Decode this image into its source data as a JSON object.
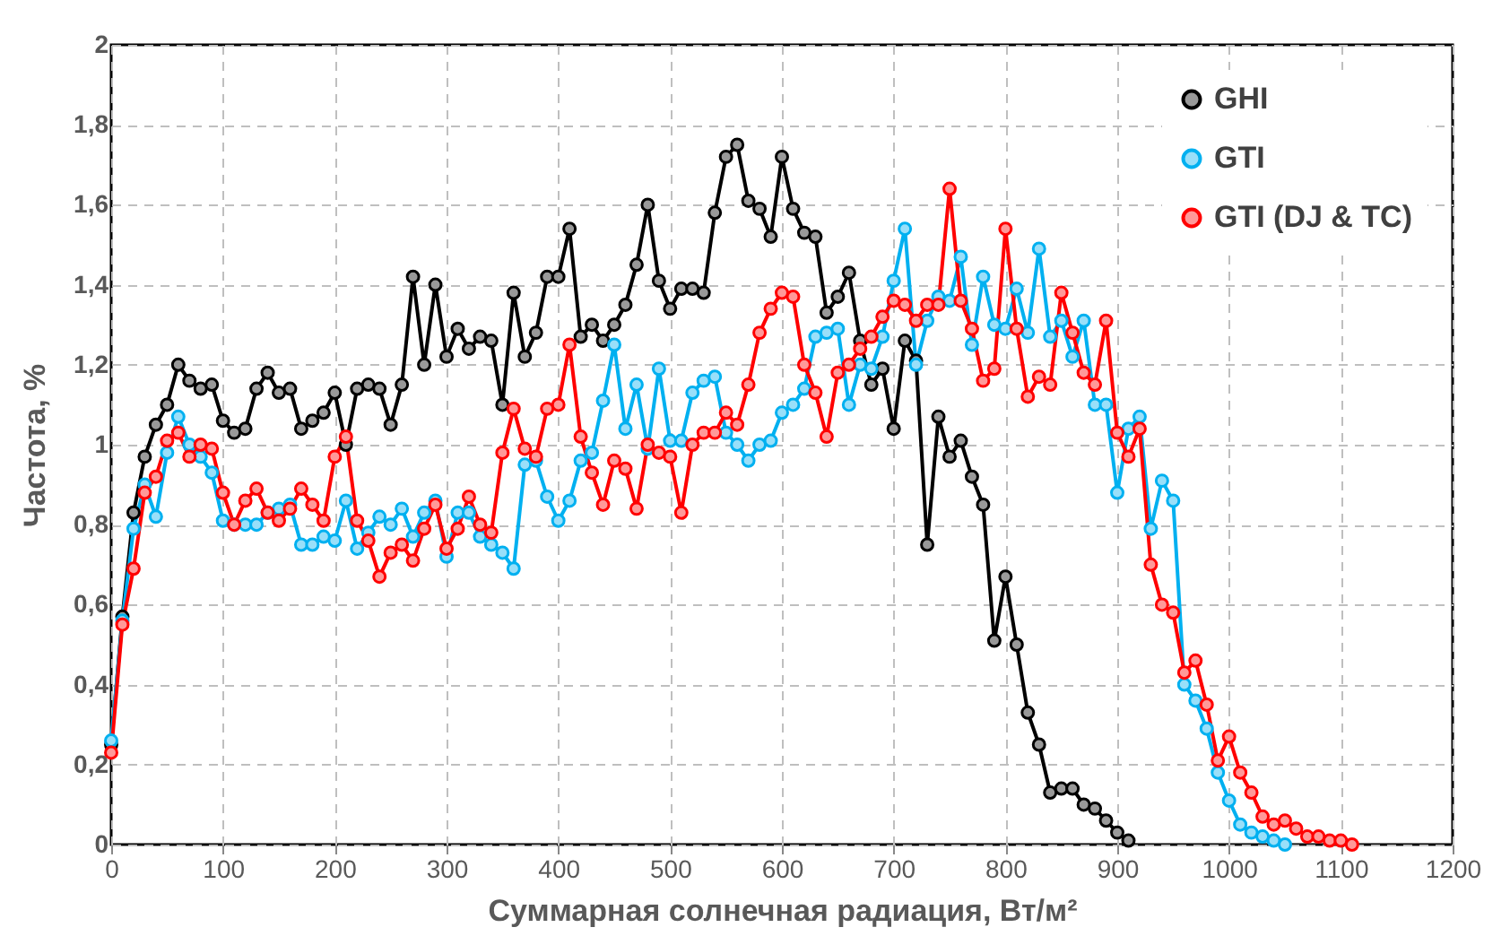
{
  "chart_data": {
    "type": "line",
    "xlabel": "Суммарная солнечная радиация, Вт/м²",
    "ylabel": "Частота, %",
    "xlim": [
      0,
      1200
    ],
    "xticks": [
      0,
      100,
      200,
      300,
      400,
      500,
      600,
      700,
      800,
      900,
      1000,
      1100,
      1200
    ],
    "ylim": [
      0,
      2
    ],
    "yticks": [
      {
        "value": 0,
        "label": "0"
      },
      {
        "value": 0.2,
        "label": "0,2"
      },
      {
        "value": 0.4,
        "label": "0,4"
      },
      {
        "value": 0.6,
        "label": "0,6"
      },
      {
        "value": 0.8,
        "label": "0,8"
      },
      {
        "value": 1,
        "label": "1"
      },
      {
        "value": 1.2,
        "label": "1,2"
      },
      {
        "value": 1.4,
        "label": "1,4"
      },
      {
        "value": 1.6,
        "label": "1,6"
      },
      {
        "value": 1.8,
        "label": "1,8"
      },
      {
        "value": 2,
        "label": "2"
      }
    ],
    "grid": true,
    "legend": "top right",
    "marker": "circle",
    "line_style": "solid",
    "series": [
      {
        "name": "GHI",
        "color": "#000000",
        "x": [
          0,
          10,
          20,
          30,
          40,
          50,
          60,
          70,
          80,
          90,
          100,
          110,
          120,
          130,
          140,
          150,
          160,
          170,
          180,
          190,
          200,
          210,
          220,
          230,
          240,
          250,
          260,
          270,
          280,
          290,
          300,
          310,
          320,
          330,
          340,
          350,
          360,
          370,
          380,
          390,
          400,
          410,
          420,
          430,
          440,
          450,
          460,
          470,
          480,
          490,
          500,
          510,
          520,
          530,
          540,
          550,
          560,
          570,
          580,
          590,
          600,
          610,
          620,
          630,
          640,
          650,
          660,
          670,
          680,
          690,
          700,
          710,
          720,
          730,
          740,
          750,
          760,
          770,
          780,
          790,
          800,
          810,
          820,
          830,
          840,
          850,
          860,
          870,
          880,
          890,
          900,
          910
        ],
        "values": [
          0.25,
          0.57,
          0.83,
          0.97,
          1.05,
          1.1,
          1.2,
          1.16,
          1.14,
          1.15,
          1.06,
          1.03,
          1.04,
          1.14,
          1.18,
          1.13,
          1.14,
          1.04,
          1.06,
          1.08,
          1.13,
          1.0,
          1.14,
          1.15,
          1.14,
          1.05,
          1.15,
          1.42,
          1.2,
          1.4,
          1.22,
          1.29,
          1.24,
          1.27,
          1.26,
          1.1,
          1.38,
          1.22,
          1.28,
          1.42,
          1.42,
          1.54,
          1.27,
          1.3,
          1.26,
          1.3,
          1.35,
          1.45,
          1.6,
          1.41,
          1.34,
          1.39,
          1.39,
          1.38,
          1.58,
          1.72,
          1.75,
          1.61,
          1.59,
          1.52,
          1.72,
          1.59,
          1.53,
          1.52,
          1.33,
          1.37,
          1.43,
          1.26,
          1.15,
          1.19,
          1.04,
          1.26,
          1.21,
          0.75,
          1.07,
          0.97,
          1.01,
          0.92,
          0.85,
          0.51,
          0.67,
          0.5,
          0.33,
          0.25,
          0.13,
          0.14,
          0.14,
          0.1,
          0.09,
          0.06,
          0.03,
          0.01
        ]
      },
      {
        "name": "GTI",
        "color": "#00b0f0",
        "x": [
          0,
          10,
          20,
          30,
          40,
          50,
          60,
          70,
          80,
          90,
          100,
          110,
          120,
          130,
          140,
          150,
          160,
          170,
          180,
          190,
          200,
          210,
          220,
          230,
          240,
          250,
          260,
          270,
          280,
          290,
          300,
          310,
          320,
          330,
          340,
          350,
          360,
          370,
          380,
          390,
          400,
          410,
          420,
          430,
          440,
          450,
          460,
          470,
          480,
          490,
          500,
          510,
          520,
          530,
          540,
          550,
          560,
          570,
          580,
          590,
          600,
          610,
          620,
          630,
          640,
          650,
          660,
          670,
          680,
          690,
          700,
          710,
          720,
          730,
          740,
          750,
          760,
          770,
          780,
          790,
          800,
          810,
          820,
          830,
          840,
          850,
          860,
          870,
          880,
          890,
          900,
          910,
          920,
          930,
          940,
          950,
          960,
          970,
          980,
          990,
          1000,
          1010,
          1020,
          1030,
          1040,
          1050
        ],
        "values": [
          0.26,
          0.56,
          0.79,
          0.9,
          0.82,
          0.98,
          1.07,
          1.0,
          0.97,
          0.93,
          0.81,
          0.8,
          0.8,
          0.8,
          0.83,
          0.84,
          0.85,
          0.75,
          0.75,
          0.77,
          0.76,
          0.86,
          0.74,
          0.78,
          0.82,
          0.8,
          0.84,
          0.77,
          0.83,
          0.86,
          0.72,
          0.83,
          0.83,
          0.77,
          0.75,
          0.73,
          0.69,
          0.95,
          0.96,
          0.87,
          0.81,
          0.86,
          0.96,
          0.98,
          1.11,
          1.25,
          1.04,
          1.15,
          0.99,
          1.19,
          1.01,
          1.01,
          1.13,
          1.16,
          1.17,
          1.03,
          1.0,
          0.96,
          1.0,
          1.01,
          1.08,
          1.1,
          1.14,
          1.27,
          1.28,
          1.29,
          1.1,
          1.2,
          1.19,
          1.27,
          1.41,
          1.54,
          1.2,
          1.31,
          1.37,
          1.36,
          1.47,
          1.25,
          1.42,
          1.3,
          1.29,
          1.39,
          1.28,
          1.49,
          1.27,
          1.31,
          1.22,
          1.31,
          1.1,
          1.1,
          0.88,
          1.04,
          1.07,
          0.79,
          0.91,
          0.86,
          0.4,
          0.36,
          0.29,
          0.18,
          0.11,
          0.05,
          0.03,
          0.02,
          0.01,
          0.0
        ]
      },
      {
        "name": "GTI (DJ & TC)",
        "color": "#ff0000",
        "x": [
          0,
          10,
          20,
          30,
          40,
          50,
          60,
          70,
          80,
          90,
          100,
          110,
          120,
          130,
          140,
          150,
          160,
          170,
          180,
          190,
          200,
          210,
          220,
          230,
          240,
          250,
          260,
          270,
          280,
          290,
          300,
          310,
          320,
          330,
          340,
          350,
          360,
          370,
          380,
          390,
          400,
          410,
          420,
          430,
          440,
          450,
          460,
          470,
          480,
          490,
          500,
          510,
          520,
          530,
          540,
          550,
          560,
          570,
          580,
          590,
          600,
          610,
          620,
          630,
          640,
          650,
          660,
          670,
          680,
          690,
          700,
          710,
          720,
          730,
          740,
          750,
          760,
          770,
          780,
          790,
          800,
          810,
          820,
          830,
          840,
          850,
          860,
          870,
          880,
          890,
          900,
          910,
          920,
          930,
          940,
          950,
          960,
          970,
          980,
          990,
          1000,
          1010,
          1020,
          1030,
          1040,
          1050,
          1060,
          1070,
          1080,
          1090,
          1100,
          1110
        ],
        "values": [
          0.23,
          0.55,
          0.69,
          0.88,
          0.92,
          1.01,
          1.03,
          0.97,
          1.0,
          0.99,
          0.88,
          0.8,
          0.86,
          0.89,
          0.83,
          0.81,
          0.84,
          0.89,
          0.85,
          0.81,
          0.97,
          1.02,
          0.81,
          0.76,
          0.67,
          0.73,
          0.75,
          0.71,
          0.79,
          0.85,
          0.74,
          0.79,
          0.87,
          0.8,
          0.78,
          0.98,
          1.09,
          0.99,
          0.97,
          1.09,
          1.1,
          1.25,
          1.02,
          0.93,
          0.85,
          0.96,
          0.94,
          0.84,
          1.0,
          0.98,
          0.97,
          0.83,
          1.0,
          1.03,
          1.03,
          1.08,
          1.05,
          1.15,
          1.28,
          1.34,
          1.38,
          1.37,
          1.2,
          1.13,
          1.02,
          1.18,
          1.2,
          1.24,
          1.27,
          1.32,
          1.36,
          1.35,
          1.31,
          1.35,
          1.35,
          1.64,
          1.36,
          1.29,
          1.16,
          1.19,
          1.54,
          1.29,
          1.12,
          1.17,
          1.15,
          1.38,
          1.28,
          1.18,
          1.15,
          1.31,
          1.03,
          0.97,
          1.04,
          0.7,
          0.6,
          0.58,
          0.43,
          0.46,
          0.35,
          0.21,
          0.27,
          0.18,
          0.13,
          0.07,
          0.05,
          0.06,
          0.04,
          0.02,
          0.02,
          0.01,
          0.01,
          0.0
        ]
      }
    ]
  }
}
